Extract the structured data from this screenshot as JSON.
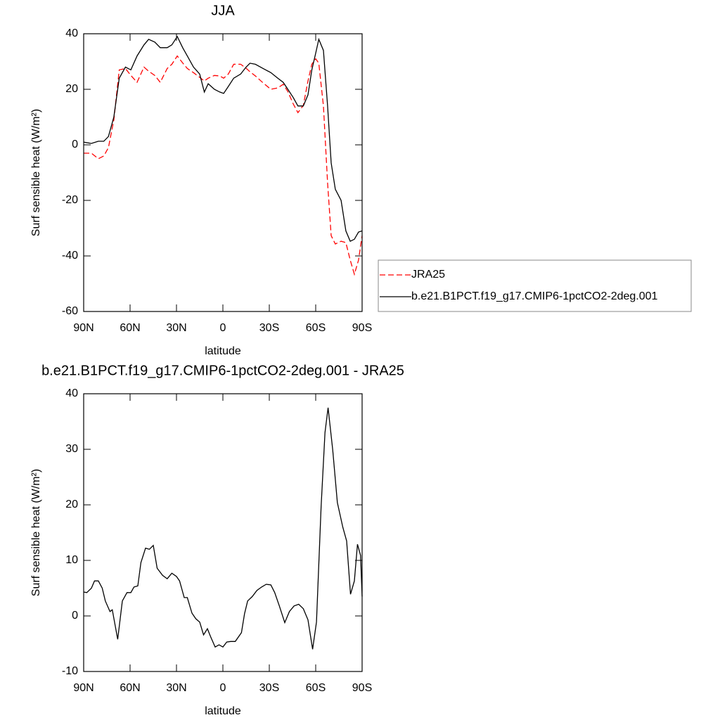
{
  "chart_data": [
    {
      "type": "line",
      "title": "JJA",
      "xlabel": "latitude",
      "ylabel": "Surf sensible heat (W/m²)",
      "x": [
        90,
        85,
        80.5,
        77,
        74,
        70.5,
        67,
        63,
        59.5,
        55.5,
        51,
        48,
        44,
        40.5,
        36,
        33,
        29.5,
        26,
        23,
        19,
        15,
        12,
        9.5,
        5.5,
        2,
        -0.5,
        -3.5,
        -7,
        -11.5,
        -15,
        -17.5,
        -21,
        -26,
        -31,
        -35.5,
        -39,
        -42,
        -45.5,
        -48.5,
        -52,
        -55,
        -57.5,
        -60,
        -62,
        -65,
        -67.7,
        -70,
        -72.7,
        -76.4,
        -79.5,
        -82.3,
        -85,
        -87.7,
        -90
      ],
      "series": [
        {
          "name": "JRA25",
          "color": "#ff0000",
          "dash": true,
          "values": [
            -3,
            -3,
            -5,
            -4,
            -1,
            9,
            27,
            27.5,
            25,
            22.5,
            28,
            26.5,
            25,
            22.5,
            27.5,
            29,
            32,
            29.5,
            27.5,
            26,
            24.3,
            23,
            24,
            25,
            24.8,
            24,
            25.5,
            29,
            29,
            27.6,
            26.3,
            24.8,
            22.3,
            20,
            20.5,
            21.8,
            19.2,
            14.7,
            11.6,
            14.2,
            23,
            29,
            31,
            29.4,
            14,
            -13.7,
            -32.7,
            -35.7,
            -34.7,
            -35.2,
            -41.5,
            -46.6,
            -41.5,
            -32.7
          ]
        },
        {
          "name": "b.e21.B1PCT.f19_g17.CMIP6-1pctCO2-2deg.001",
          "color": "#000000",
          "dash": false,
          "values": [
            1,
            0.5,
            1.3,
            1.3,
            3,
            10,
            24,
            28,
            27,
            32,
            36,
            38,
            37,
            35,
            35,
            36,
            39,
            35,
            32,
            28,
            25.5,
            19,
            22,
            20,
            19,
            18.5,
            21,
            24,
            25.5,
            28,
            29.4,
            29,
            27.5,
            26,
            24,
            22.5,
            20,
            17,
            14,
            14,
            18,
            27,
            33,
            38,
            34,
            14,
            -6.5,
            -16,
            -20,
            -31,
            -34.7,
            -34,
            -31.4,
            -31
          ]
        }
      ],
      "xlim": [
        90,
        -90
      ],
      "xticks": [
        {
          "value": 90,
          "label": "90N"
        },
        {
          "value": 60,
          "label": "60N"
        },
        {
          "value": 30,
          "label": "30N"
        },
        0,
        {
          "value": -30,
          "label": "30S"
        },
        {
          "value": -60,
          "label": "60S"
        },
        {
          "value": -90,
          "label": "90S"
        }
      ],
      "ylim": [
        -60,
        40
      ],
      "yticks": [
        40,
        20,
        0,
        -20,
        -40,
        -60
      ],
      "legend": "right"
    },
    {
      "type": "line",
      "title": "b.e21.B1PCT.f19_g17.CMIP6-1pctCO2-2deg.001 - JRA25",
      "xlabel": "latitude",
      "ylabel": "Surf sensible heat (W/m²)",
      "x": [
        90,
        88,
        85,
        83,
        80.5,
        78,
        76,
        73,
        71.5,
        68,
        65,
        62,
        59.5,
        57.5,
        55,
        53,
        50,
        47.5,
        45,
        42.5,
        39,
        36,
        33,
        30,
        28,
        25,
        23,
        20,
        17.5,
        15,
        12.5,
        10,
        8,
        5,
        2.5,
        0,
        -2.5,
        -5,
        -8,
        -12,
        -14,
        -16,
        -19,
        -22,
        -25,
        -28,
        -31,
        -33.5,
        -36.5,
        -40,
        -43,
        -46,
        -49,
        -52,
        -55,
        -58,
        -60.5,
        -63.5,
        -66,
        -68,
        -71,
        -74,
        -77.5,
        -80,
        -82.5,
        -85,
        -87,
        -89,
        -90
      ],
      "series": [
        {
          "color": "#000000",
          "dash": false,
          "values": [
            4.3,
            4.2,
            5,
            6.3,
            6.3,
            5,
            2.7,
            0.8,
            1.1,
            -4.2,
            2.7,
            4.2,
            4.2,
            5.2,
            5.4,
            9.6,
            12.2,
            12,
            12.7,
            8.6,
            7.3,
            6.7,
            7.7,
            7.1,
            6.3,
            3.3,
            3.3,
            0.5,
            -0.5,
            -1.1,
            -3.4,
            -2.3,
            -3.7,
            -5.6,
            -5.2,
            -5.6,
            -4.7,
            -4.6,
            -4.6,
            -3,
            0.4,
            2.7,
            3.5,
            4.6,
            5.2,
            5.7,
            5.6,
            4.2,
            1.8,
            -1.2,
            0.8,
            1.8,
            2.1,
            1.3,
            -0.7,
            -6,
            -1.1,
            19.7,
            33,
            37.5,
            29.9,
            20.4,
            16,
            13.5,
            3.9,
            6.3,
            12.9,
            10.9,
            3.5
          ]
        }
      ],
      "xlim": [
        90,
        -90
      ],
      "xticks": [
        {
          "value": 90,
          "label": "90N"
        },
        {
          "value": 60,
          "label": "60N"
        },
        {
          "value": 30,
          "label": "30N"
        },
        0,
        {
          "value": -30,
          "label": "30S"
        },
        {
          "value": -60,
          "label": "60S"
        },
        {
          "value": -90,
          "label": "90S"
        }
      ],
      "ylim": [
        -10,
        40
      ],
      "yticks": [
        40,
        30,
        20,
        10,
        0,
        -10
      ]
    }
  ]
}
